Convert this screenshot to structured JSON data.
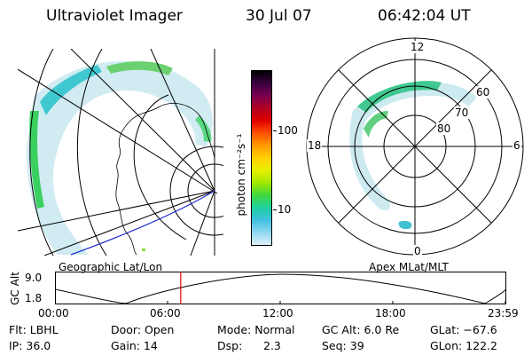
{
  "header": {
    "instrument": "Ultraviolet Imager",
    "date": "30 Jul 07",
    "time": "06:42:04 UT"
  },
  "colorbar": {
    "unit_label": "photon cm⁻²s⁻¹",
    "ticks": [
      "100",
      "10"
    ],
    "colors": [
      "#000000",
      "#3a0040",
      "#7a0050",
      "#b00020",
      "#e00000",
      "#ff5000",
      "#ff9a00",
      "#ffd000",
      "#e8f000",
      "#a0e800",
      "#40d840",
      "#20d0a0",
      "#40c0e0",
      "#90d8f0",
      "#e0f0f8"
    ]
  },
  "left_panel": {
    "caption": "Geographic Lat/Lon"
  },
  "right_panel": {
    "caption": "Apex MLat/MLT",
    "mlt_labels": {
      "top": "12",
      "bottom": "0",
      "left": "18",
      "right": "6"
    },
    "lat_labels": [
      "60",
      "70",
      "80"
    ]
  },
  "altitude_strip": {
    "axis_label": "GC Alt",
    "y_ticks": [
      "9.0",
      "1.8"
    ],
    "x_ticks": [
      "00:00",
      "06:00",
      "12:00",
      "18:00",
      "23:59"
    ],
    "marker_hour": 6.7
  },
  "footer": {
    "filter": "Flt: LBHL",
    "ip": "IP: 36.0",
    "door": "Door: Open",
    "gain": "Gain: 14",
    "mode": "Mode: Normal",
    "dsp_label": "Dsp:",
    "dsp_value": "2.3",
    "gc_alt": "GC Alt: 6.0 Re",
    "seq": "Seq: 39",
    "glat": "GLat: −67.6",
    "glon": "GLon: 122.2"
  }
}
